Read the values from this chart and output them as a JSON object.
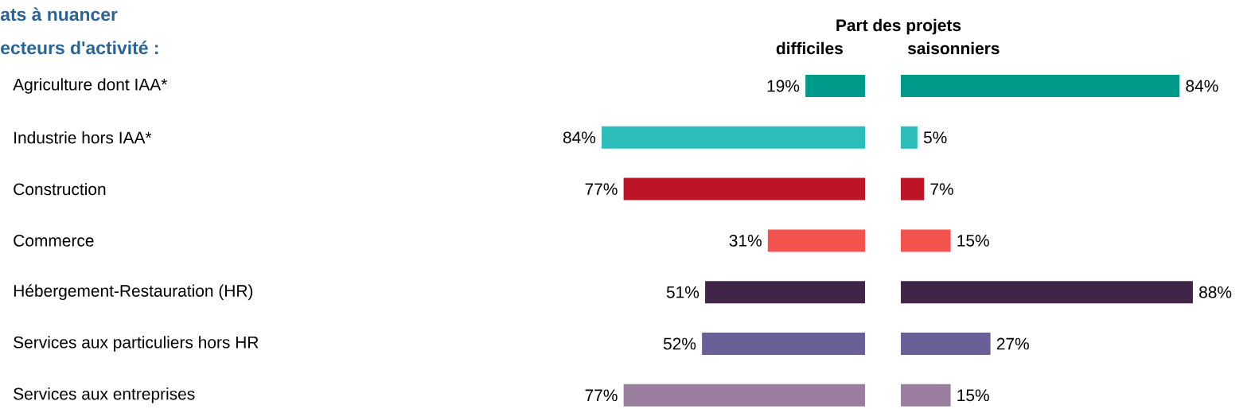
{
  "chart_data": [
    {
      "type": "bar",
      "orientation": "horizontal",
      "title": "difficiles",
      "annotations": [
        "ats à nuancer",
        "ecteurs d'activité :"
      ],
      "tick_labels": "y",
      "categories": [
        "Agriculture dont IAA*",
        "Industrie hors IAA*",
        "Construction",
        "Commerce",
        "Hébergement-Restauration (HR)",
        "Services aux particuliers hors HR",
        "Services aux entreprises"
      ],
      "values": [
        19,
        84,
        77,
        31,
        51,
        52,
        77
      ],
      "value_labels": [
        "19%",
        "84%",
        "77%",
        "31%",
        "51%",
        "52%",
        "77%"
      ],
      "colors": [
        "#009a8a",
        "#2bbdb9",
        "#be1428",
        "#f4524d",
        "#3f2548",
        "#6a5f96",
        "#997e9e"
      ]
    },
    {
      "type": "bar",
      "orientation": "horizontal",
      "title": "saisonniers",
      "annotations": [
        "Part des projets"
      ],
      "tick_labels": false,
      "categories": [
        null,
        null,
        null,
        null,
        null,
        null,
        null
      ],
      "values": [
        84,
        5,
        7,
        15,
        88,
        27,
        15
      ],
      "value_labels": [
        "84%",
        "5%",
        "7%",
        "15%",
        "88%",
        "27%",
        "15%"
      ],
      "colors": [
        "#009a8a",
        "#2bbdb9",
        "#be1428",
        "#f4524d",
        "#3f2548",
        "#6a5f96",
        "#997e9e"
      ]
    }
  ]
}
